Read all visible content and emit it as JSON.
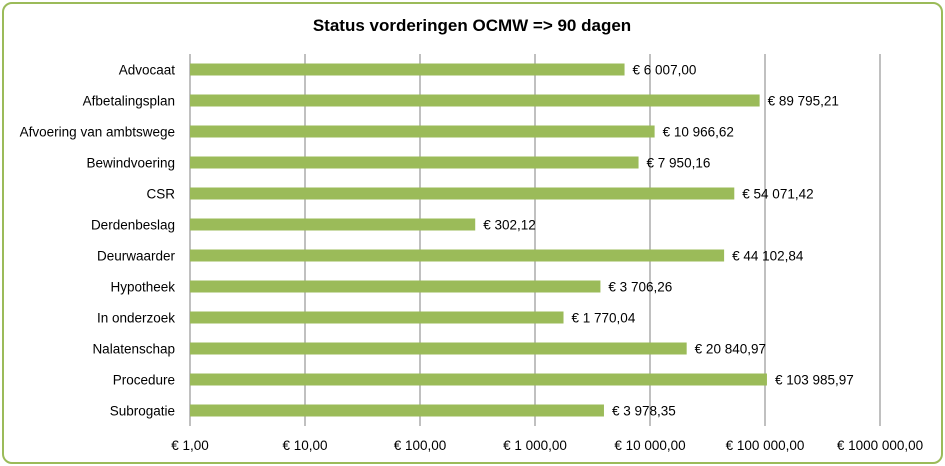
{
  "chart_data": {
    "type": "bar",
    "orientation": "horizontal",
    "title": "Status vorderingen OCMW => 90 dagen",
    "scale": "log",
    "xlim": [
      1,
      1000000
    ],
    "grid": true,
    "bar_color": "#9bbb59",
    "border_color": "#9bbb59",
    "categories": [
      "Advocaat",
      "Afbetalingsplan",
      "Afvoering van ambtswege",
      "Bewindvoering",
      "CSR",
      "Derdenbeslag",
      "Deurwaarder",
      "Hypotheek",
      "In onderzoek",
      "Nalatenschap",
      "Procedure",
      "Subrogatie"
    ],
    "values": [
      6007.0,
      89795.21,
      10966.62,
      7950.16,
      54071.42,
      302.12,
      44102.84,
      3706.26,
      1770.04,
      20840.97,
      103985.97,
      3978.35
    ],
    "value_labels": [
      "€ 6 007,00",
      "€ 89 795,21",
      "€ 10 966,62",
      "€ 7 950,16",
      "€ 54 071,42",
      "€  302,12",
      "€ 44 102,84",
      "€ 3 706,26",
      "€ 1 770,04",
      "€ 20 840,97",
      "€ 103 985,97",
      "€ 3 978,35"
    ],
    "tick_values": [
      1,
      10,
      100,
      1000,
      10000,
      100000,
      1000000
    ],
    "tick_labels": [
      "€  1,00",
      "€  10,00",
      "€  100,00",
      "€ 1 000,00",
      "€ 10 000,00",
      "€ 100 000,00",
      "€ 1000 000,00"
    ]
  }
}
